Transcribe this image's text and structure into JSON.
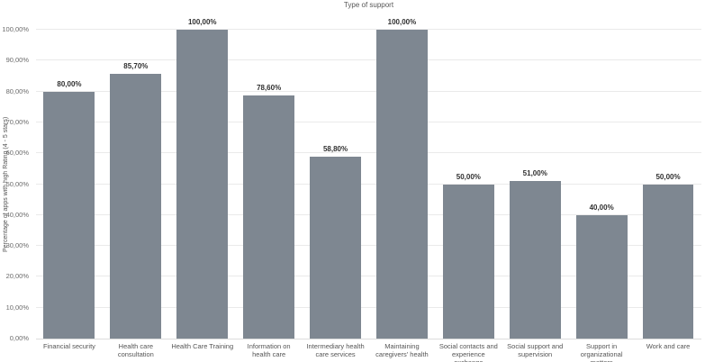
{
  "chart_data": {
    "type": "bar",
    "title": "Type of support",
    "xlabel": "",
    "ylabel": "Percentage of apps with high Rating (4 - 5 stars)",
    "categories": [
      "Financial security",
      "Health care consultation",
      "Health Care Training",
      "Information on health care",
      "Intermediary health care services",
      "Maintaining caregivers' health",
      "Social contacts and experience exchange",
      "Social support and supervision",
      "Support in organizational matters",
      "Work and care"
    ],
    "values": [
      80.0,
      85.7,
      100.0,
      78.6,
      58.8,
      100.0,
      50.0,
      51.0,
      40.0,
      50.0
    ],
    "value_labels": [
      "80,00%",
      "85,70%",
      "100,00%",
      "78,60%",
      "58,80%",
      "100,00%",
      "50,00%",
      "51,00%",
      "40,00%",
      "50,00%"
    ],
    "y_ticks": [
      "0,00%",
      "10,00%",
      "20,00%",
      "30,00%",
      "40,00%",
      "50,00%",
      "60,00%",
      "70,00%",
      "80,00%",
      "90,00%",
      "100,00%"
    ],
    "ylim": [
      0,
      100
    ],
    "grid": true,
    "legend": "none",
    "colors": {
      "bar": "#7e8791",
      "gridline": "#eaeaea",
      "baseline": "#dcdcdc",
      "tick_text": "#6b6b6b",
      "value_text": "#303030",
      "axis_text": "#555555"
    }
  }
}
